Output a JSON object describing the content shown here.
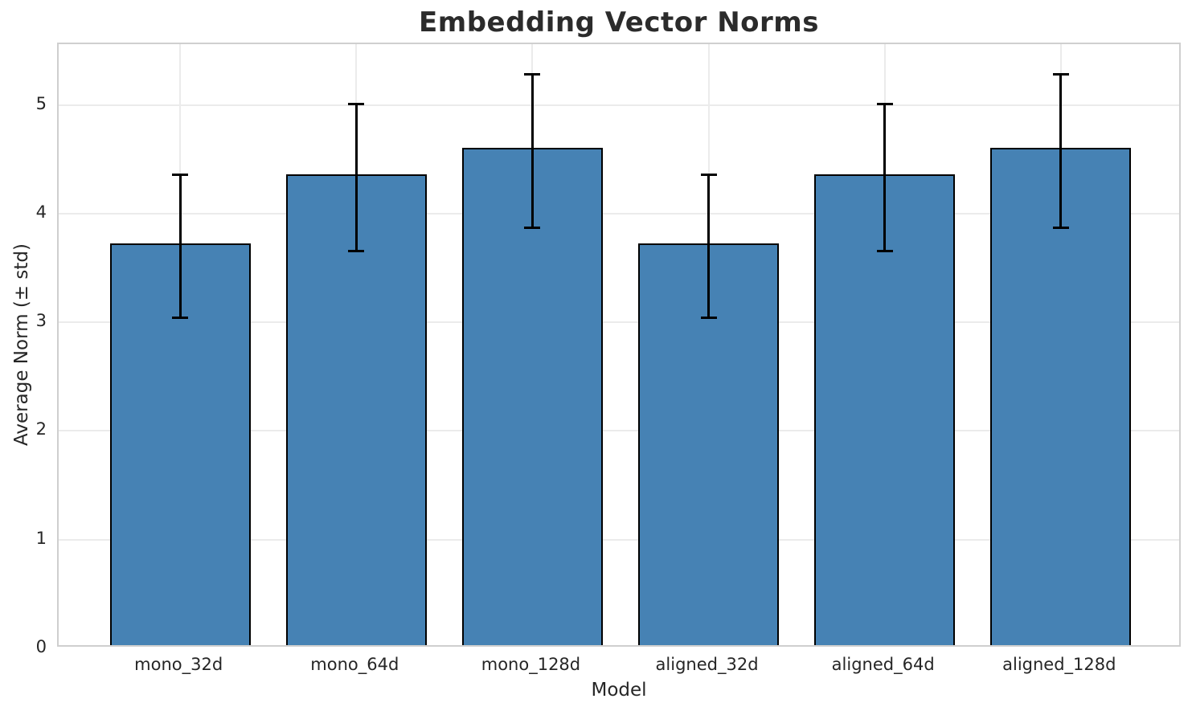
{
  "chart_data": {
    "type": "bar",
    "title": "Embedding Vector Norms",
    "xlabel": "Model",
    "ylabel": "Average Norm (± std)",
    "categories": [
      "mono_32d",
      "mono_64d",
      "mono_128d",
      "aligned_32d",
      "aligned_64d",
      "aligned_128d"
    ],
    "values": [
      3.7,
      4.33,
      4.58,
      3.7,
      4.33,
      4.58
    ],
    "errors": [
      0.66,
      0.68,
      0.71,
      0.66,
      0.68,
      0.71
    ],
    "yticks": [
      0,
      1,
      2,
      3,
      4,
      5
    ],
    "ylim": [
      0,
      5.56
    ],
    "bar_width_units": 0.8,
    "x_margin_units": 0.69,
    "grid": true,
    "legend_position": "none",
    "colors": {
      "bar_fill": "#4682B4",
      "bar_edge": "#000000",
      "error_bar": "#000000",
      "gridline": "#ebebeb",
      "spine": "#cfcfcf",
      "title_text": "#2b2b2b",
      "tick_text": "#262626"
    }
  }
}
